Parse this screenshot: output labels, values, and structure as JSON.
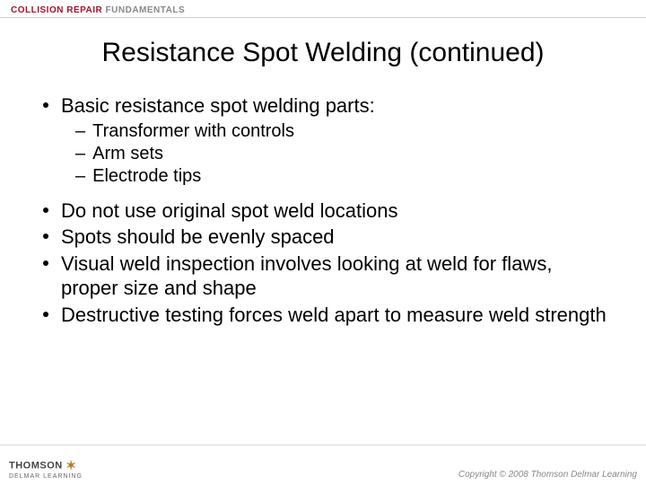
{
  "header": {
    "red_text": "COLLISION REPAIR",
    "gray_text": "FUNDAMENTALS"
  },
  "title": "Resistance Spot Welding (continued)",
  "bullets": [
    {
      "level": 1,
      "text": "Basic resistance spot welding parts:"
    },
    {
      "level": 2,
      "text": "Transformer with controls"
    },
    {
      "level": 2,
      "text": "Arm sets"
    },
    {
      "level": 2,
      "text": "Electrode tips"
    },
    {
      "level": 1,
      "text": "Do not use original spot weld locations"
    },
    {
      "level": 1,
      "text": "Spots should be evenly spaced"
    },
    {
      "level": 1,
      "text": "Visual weld inspection involves looking at weld for flaws, proper size and shape"
    },
    {
      "level": 1,
      "text": "Destructive testing forces weld apart to measure weld strength"
    }
  ],
  "footer": {
    "brand_top": "THOMSON",
    "brand_bottom": "DELMAR LEARNING",
    "copyright": "Copyright © 2008 Thomson Delmar Learning"
  }
}
